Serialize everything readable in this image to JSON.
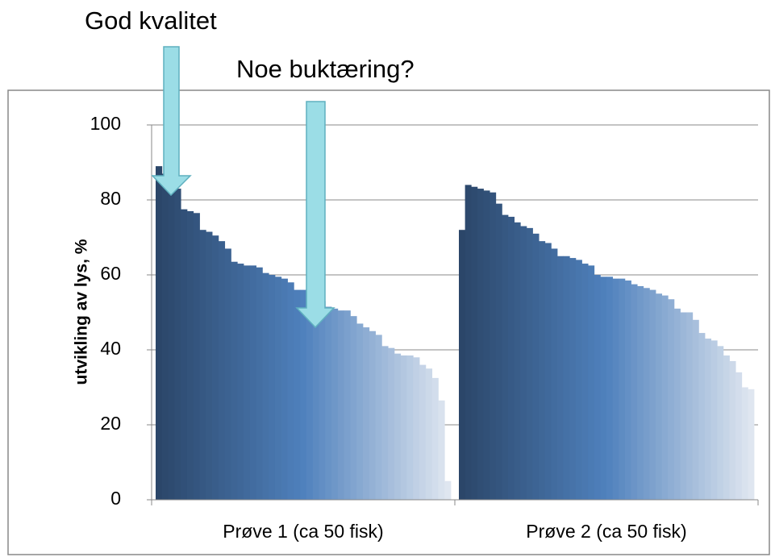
{
  "chart_data": {
    "type": "bar",
    "annotations": [
      "God kvalitet",
      "Noe buktæring?"
    ],
    "y_label": "utvikling av lys, %",
    "categories": [
      "Prøve 1 (ca 50 fisk)",
      "Prøve 2 (ca 50 fisk)"
    ],
    "values": [
      [
        89,
        87,
        83,
        83,
        77.5,
        77,
        76.5,
        72,
        71.5,
        70.5,
        69,
        67,
        63.5,
        63,
        62.5,
        62.5,
        62,
        60.5,
        60,
        59.5,
        59,
        58,
        56,
        56,
        56,
        56,
        53,
        51.5,
        51,
        50.5,
        50.5,
        49,
        47,
        46,
        45,
        44,
        41,
        40.5,
        39,
        38.5,
        38.5,
        38,
        36,
        35,
        32.5,
        26.5,
        5
      ],
      [
        72,
        84,
        83.5,
        83,
        82.5,
        82,
        79,
        76,
        75.5,
        74,
        73,
        72.5,
        71,
        69,
        68.5,
        67,
        65,
        65,
        64.5,
        64,
        63,
        62.5,
        60,
        59.5,
        59.5,
        59,
        59,
        58.5,
        57.5,
        57,
        56.5,
        56,
        55,
        54.5,
        53.5,
        51,
        50,
        50,
        48,
        44.5,
        43,
        42.5,
        41,
        38.5,
        37,
        34,
        30,
        29.5
      ]
    ],
    "colors": [
      "#2b4669",
      "#4f81bd",
      "#dfe6f0"
    ],
    "ylim": [
      0,
      100
    ],
    "yticks": [
      0,
      20,
      40,
      60,
      80,
      100
    ],
    "grid": true
  }
}
